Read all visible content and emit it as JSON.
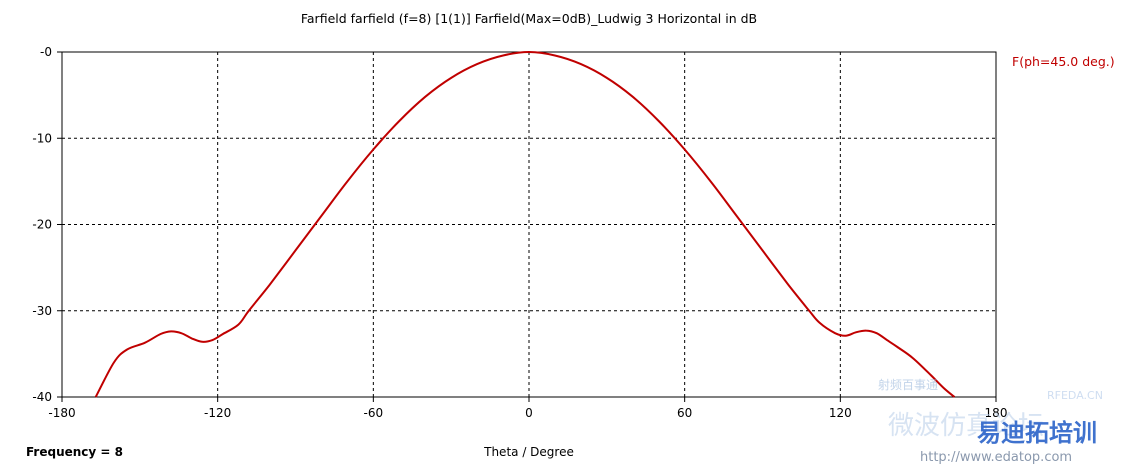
{
  "chart_data": {
    "type": "line",
    "title": "Farfield farfield (f=8) [1(1)] Farfield(Max=0dB)_Ludwig 3 Horizontal in dB",
    "xlabel": "Theta / Degree",
    "ylabel": "",
    "xlim": [
      -180,
      180
    ],
    "ylim": [
      -40,
      0
    ],
    "xticks": [
      -180,
      -120,
      -60,
      0,
      60,
      120,
      180
    ],
    "yticks": [
      0,
      -10,
      -20,
      -30,
      -40
    ],
    "ytick_labels": [
      "-0",
      "-10",
      "-20",
      "-30",
      "-40"
    ],
    "grid": true,
    "legend_position": "right",
    "series": [
      {
        "name": "F(ph=45.0 deg.)",
        "color": "#c00000",
        "x": [
          -167,
          -160,
          -155,
          -148,
          -142,
          -138,
          -134,
          -130,
          -126,
          -122,
          -118,
          -112,
          -108,
          -100,
          -90,
          -80,
          -70,
          -60,
          -50,
          -40,
          -30,
          -20,
          -10,
          0,
          10,
          20,
          30,
          40,
          50,
          60,
          70,
          80,
          90,
          100,
          108,
          112,
          118,
          122,
          126,
          130,
          134,
          138,
          142,
          148,
          155,
          160,
          164
        ],
        "y": [
          -40,
          -36,
          -34.5,
          -33.7,
          -32.7,
          -32.4,
          -32.6,
          -33.2,
          -33.6,
          -33.4,
          -32.7,
          -31.6,
          -30,
          -27,
          -23,
          -19,
          -15,
          -11.3,
          -8,
          -5.2,
          -3,
          -1.4,
          -0.4,
          0,
          -0.4,
          -1.4,
          -3,
          -5.2,
          -8,
          -11.3,
          -15,
          -19,
          -23,
          -27,
          -30,
          -31.4,
          -32.6,
          -32.9,
          -32.5,
          -32.3,
          -32.6,
          -33.4,
          -34.2,
          -35.5,
          -37.5,
          -39,
          -40
        ]
      }
    ]
  },
  "footer": {
    "frequency_label": "Frequency = 8"
  },
  "watermarks": {
    "top": "RFEDA.CN",
    "cn_top": "射频百事通",
    "cn_mid": "微波仿真论坛",
    "cn_bottom": "易迪拓培训",
    "url": "http://www.edatop.com"
  }
}
